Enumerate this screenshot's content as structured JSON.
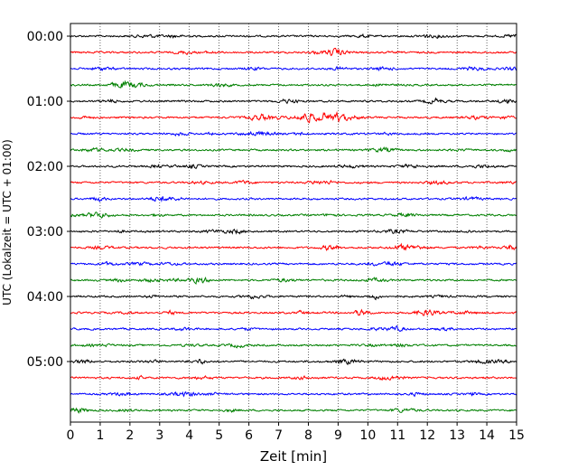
{
  "chart_data": {
    "type": "line",
    "title": "",
    "xlabel": "Zeit  [min]",
    "ylabel": "UTC (Lokalzeit = UTC + 01:00)",
    "xlim": [
      0,
      15
    ],
    "x_ticks": [
      0,
      1,
      2,
      3,
      4,
      5,
      6,
      7,
      8,
      9,
      10,
      11,
      12,
      13,
      14,
      15
    ],
    "y_tick_labels": [
      "00:00",
      "01:00",
      "02:00",
      "03:00",
      "04:00",
      "05:00"
    ],
    "grid": "vertical dotted lines at each minute",
    "trace_interval_min": 15,
    "trace_count": 24,
    "colors": [
      "#000000",
      "#ff0000",
      "#0000ff",
      "#008000"
    ],
    "bursts": [
      {
        "trace": 5,
        "center_min": 8.7,
        "width_min": 1.6,
        "amp": 2.6
      },
      {
        "trace": 5,
        "center_min": 6.5,
        "width_min": 1.2,
        "amp": 1.4
      },
      {
        "trace": 13,
        "center_min": 8.8,
        "width_min": 0.6,
        "amp": 1.8
      },
      {
        "trace": 13,
        "center_min": 14.8,
        "width_min": 0.5,
        "amp": 1.6
      },
      {
        "trace": 17,
        "center_min": 9.8,
        "width_min": 0.6,
        "amp": 1.5
      },
      {
        "trace": 15,
        "center_min": 4.3,
        "width_min": 0.6,
        "amp": 1.4
      },
      {
        "trace": 20,
        "center_min": 4.3,
        "width_min": 0.6,
        "amp": 1.3
      }
    ]
  }
}
